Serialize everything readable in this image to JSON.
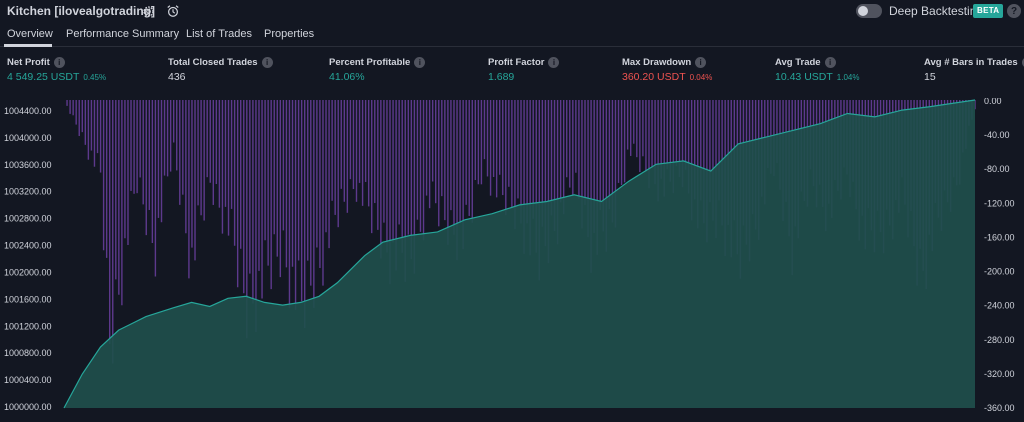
{
  "header": {
    "title": "Kitchen [ilovealgotrading]",
    "settings_icon": "gear-icon",
    "alert_icon": "alarm-clock-icon",
    "deep_backtesting_label": "Deep Backtesting",
    "deep_backtesting_enabled": false,
    "beta_badge": "BETA",
    "help_label": "?"
  },
  "tabs": [
    {
      "label": "Overview",
      "active": true
    },
    {
      "label": "Performance Summary",
      "active": false
    },
    {
      "label": "List of Trades",
      "active": false
    },
    {
      "label": "Properties",
      "active": false
    }
  ],
  "stats": [
    {
      "label": "Net Profit",
      "value": "4 549.25 USDT",
      "pct": "0.45%",
      "tone": "pos"
    },
    {
      "label": "Total Closed Trades",
      "value": "436",
      "pct": "",
      "tone": "plain"
    },
    {
      "label": "Percent Profitable",
      "value": "41.06%",
      "pct": "",
      "tone": "pos"
    },
    {
      "label": "Profit Factor",
      "value": "1.689",
      "pct": "",
      "tone": "pos"
    },
    {
      "label": "Max Drawdown",
      "value": "360.20 USDT",
      "pct": "0.04%",
      "tone": "neg"
    },
    {
      "label": "Avg Trade",
      "value": "10.43 USDT",
      "pct": "1.04%",
      "tone": "pos"
    },
    {
      "label": "Avg # Bars in Trades",
      "value": "15",
      "pct": "",
      "tone": "plain"
    }
  ],
  "colors": {
    "background": "#131722",
    "positive": "#26a69a",
    "negative": "#ef5350",
    "equity_fill": "#1f4f4c",
    "equity_line": "#26a69a",
    "drawdown_bar": "#6b3fa0"
  },
  "chart_data": {
    "type": "area",
    "left_axis": {
      "label": "",
      "ticks": [
        "1004400.00",
        "1004000.00",
        "1003600.00",
        "1003200.00",
        "1002800.00",
        "1002400.00",
        "1002000.00",
        "1001600.00",
        "1001200.00",
        "1000800.00",
        "1000400.00",
        "1000000.00"
      ],
      "range": [
        1000000,
        1004549.25
      ]
    },
    "right_axis": {
      "label": "",
      "ticks": [
        "0.00",
        "-40.00",
        "-80.00",
        "-120.00",
        "-160.00",
        "-200.00",
        "-240.00",
        "-280.00",
        "-320.00",
        "-360.00"
      ],
      "range": [
        -360,
        0
      ]
    },
    "series": [
      {
        "kind": "equity",
        "x": [
          0,
          2,
          4,
          6,
          9,
          12,
          14,
          16,
          18,
          20,
          22,
          24,
          26,
          28,
          30,
          33,
          35,
          38,
          41,
          44,
          47,
          50,
          53,
          56,
          59,
          62,
          65,
          68,
          71,
          74,
          77,
          80,
          83,
          86,
          89,
          92,
          95,
          100
        ],
        "values": [
          1000000,
          1000500,
          1000900,
          1001150,
          1001350,
          1001480,
          1001560,
          1001500,
          1001620,
          1001650,
          1001560,
          1001520,
          1001560,
          1001650,
          1001850,
          1002250,
          1002450,
          1002550,
          1002600,
          1002780,
          1002870,
          1003000,
          1003050,
          1003150,
          1003050,
          1003350,
          1003600,
          1003650,
          1003500,
          1003900,
          1004000,
          1004100,
          1004200,
          1004350,
          1004300,
          1004400,
          1004450,
          1004549.25
        ]
      },
      {
        "kind": "drawdown",
        "x": [
          0,
          4,
          5,
          6,
          8,
          10,
          12,
          14,
          16,
          18,
          20,
          22,
          24,
          26,
          28,
          30,
          32,
          34,
          36,
          38,
          40,
          42,
          44,
          46,
          48,
          50,
          52,
          54,
          56,
          58,
          60,
          62,
          64,
          66,
          68,
          70,
          72,
          74,
          76,
          78,
          80,
          82,
          84,
          86,
          88,
          90,
          92,
          94,
          96,
          98,
          100
        ],
        "values": [
          0,
          -90,
          -300,
          -230,
          -100,
          -180,
          -60,
          -200,
          -100,
          -150,
          -250,
          -220,
          -180,
          -260,
          -200,
          -140,
          -100,
          -150,
          -190,
          -200,
          -120,
          -150,
          -170,
          -80,
          -120,
          -140,
          -200,
          -150,
          -100,
          -180,
          -160,
          -60,
          -90,
          -110,
          -90,
          -160,
          -140,
          -200,
          -150,
          -80,
          -180,
          -100,
          -140,
          -90,
          -170,
          -160,
          -120,
          -210,
          -150,
          -100,
          -10
        ]
      }
    ]
  }
}
